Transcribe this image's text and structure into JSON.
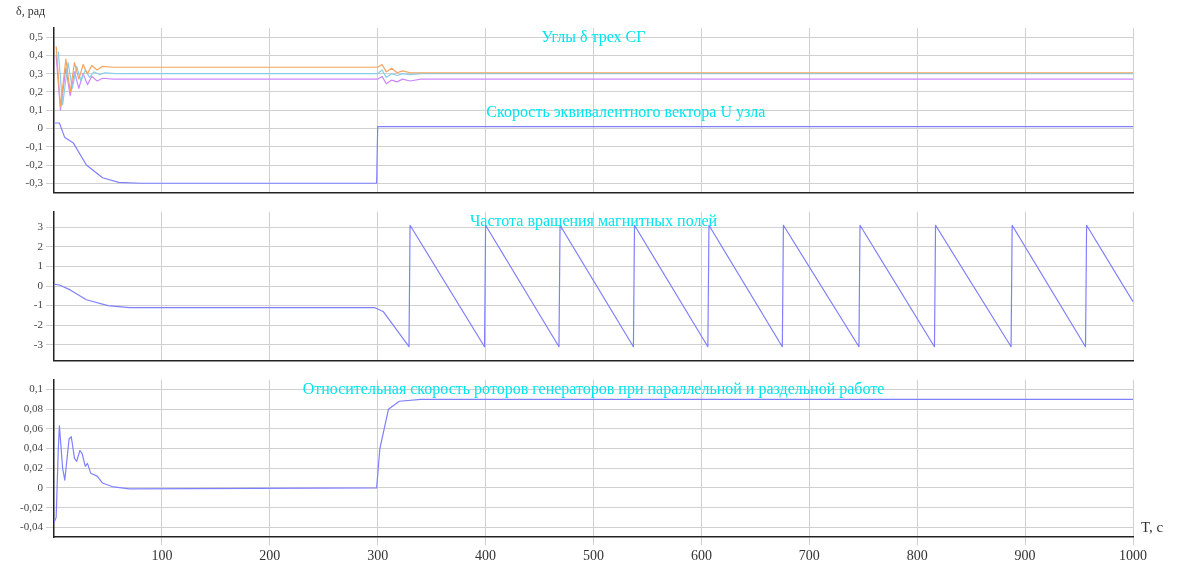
{
  "chart_data": [
    {
      "type": "line",
      "title": "Углы δ трех СГ",
      "ylabel": "δ, рад",
      "annotations": [
        {
          "text": "Скорость эквивалентного вектора U узла",
          "x": 530,
          "y": 0.04
        }
      ],
      "xlim": [
        0,
        1000
      ],
      "xticks": [
        100,
        200,
        300,
        400,
        500,
        600,
        700,
        800,
        900,
        1000
      ],
      "ylim": [
        -0.35,
        0.55
      ],
      "yticks": [
        {
          "value": -0.3,
          "label": "-0,3"
        },
        {
          "value": -0.2,
          "label": "-0,2"
        },
        {
          "value": -0.1,
          "label": "-0,1"
        },
        {
          "value": 0,
          "label": "0"
        },
        {
          "value": 0.1,
          "label": "0,1"
        },
        {
          "value": 0.2,
          "label": "0,2"
        },
        {
          "value": 0.3,
          "label": "0,3"
        },
        {
          "value": 0.4,
          "label": "0,4"
        },
        {
          "value": 0.5,
          "label": "0,5"
        }
      ],
      "tick_labels": "y",
      "grid": true,
      "legend": false,
      "marker": "none",
      "line_style": "solid",
      "series": [
        {
          "color": "#f4a460",
          "x": [
            2,
            6,
            11,
            15,
            19,
            23,
            27,
            31,
            35,
            40,
            45,
            55,
            300,
            304,
            308,
            313,
            318,
            323,
            330,
            340,
            1000
          ],
          "values": [
            0.45,
            0.12,
            0.38,
            0.2,
            0.36,
            0.27,
            0.35,
            0.3,
            0.345,
            0.32,
            0.34,
            0.335,
            0.335,
            0.35,
            0.31,
            0.33,
            0.305,
            0.315,
            0.305,
            0.305,
            0.305
          ]
        },
        {
          "color": "#87ceeb",
          "x": [
            4,
            8,
            13,
            17,
            21,
            25,
            29,
            33,
            37,
            42,
            47,
            57,
            300,
            304,
            308,
            313,
            318,
            323,
            330,
            340,
            1000
          ],
          "values": [
            0.42,
            0.13,
            0.36,
            0.22,
            0.34,
            0.26,
            0.32,
            0.28,
            0.31,
            0.295,
            0.305,
            0.3,
            0.3,
            0.32,
            0.28,
            0.3,
            0.29,
            0.3,
            0.295,
            0.3,
            0.3
          ]
        },
        {
          "color": "#cc88ff",
          "x": [
            2,
            6,
            11,
            15,
            19,
            23,
            27,
            31,
            35,
            40,
            45,
            55,
            300,
            304,
            308,
            313,
            318,
            323,
            330,
            340,
            1000
          ],
          "values": [
            0.4,
            0.1,
            0.33,
            0.18,
            0.31,
            0.22,
            0.3,
            0.24,
            0.285,
            0.26,
            0.275,
            0.27,
            0.27,
            0.285,
            0.245,
            0.265,
            0.255,
            0.27,
            0.26,
            0.27,
            0.27
          ]
        },
        {
          "color": "#8080ff",
          "x": [
            0,
            5,
            10,
            18,
            30,
            45,
            60,
            80,
            299,
            300,
            1000
          ],
          "values": [
            0.03,
            0.03,
            -0.05,
            -0.08,
            -0.2,
            -0.27,
            -0.295,
            -0.3,
            -0.3,
            0.01,
            0.01
          ]
        }
      ]
    },
    {
      "type": "line",
      "title": "Частота вращения магнитных полей",
      "xlim": [
        0,
        1000
      ],
      "xticks": [
        100,
        200,
        300,
        400,
        500,
        600,
        700,
        800,
        900,
        1000
      ],
      "ylim": [
        -3.8,
        3.8
      ],
      "yticks": [
        -3,
        -2,
        -1,
        0,
        1,
        2,
        3
      ],
      "tick_labels": "y",
      "grid": true,
      "legend": false,
      "marker": "none",
      "line_style": "solid",
      "series": [
        {
          "color": "#8080ff",
          "x": [
            0,
            5,
            15,
            30,
            50,
            70,
            100,
            297,
            305,
            329,
            330,
            399,
            400,
            468,
            469,
            537,
            538,
            606,
            607,
            675,
            676,
            746,
            747,
            816,
            817,
            887,
            888,
            956,
            957,
            1000
          ],
          "values": [
            0.1,
            0.05,
            -0.2,
            -0.7,
            -1,
            -1.1,
            -1.1,
            -1.1,
            -1.3,
            -3.1,
            3.1,
            -3.1,
            3.1,
            -3.1,
            3.1,
            -3.1,
            3.1,
            -3.1,
            3.1,
            -3.1,
            3.1,
            -3.1,
            3.1,
            -3.1,
            3.1,
            -3.1,
            3.1,
            -3.1,
            3.1,
            -0.8
          ]
        }
      ]
    },
    {
      "type": "line",
      "title": "Относительная скорость роторов генераторов при параллельной и раздельной работе",
      "xlabel": "T, c",
      "xlim": [
        0,
        1000
      ],
      "xticks": [
        100,
        200,
        300,
        400,
        500,
        600,
        700,
        800,
        900,
        1000
      ],
      "ylim": [
        -0.05,
        0.11
      ],
      "yticks": [
        {
          "value": -0.04,
          "label": "-0,04"
        },
        {
          "value": -0.02,
          "label": "-0,02"
        },
        {
          "value": 0,
          "label": "0"
        },
        {
          "value": 0.02,
          "label": "0,02"
        },
        {
          "value": 0.04,
          "label": "0,04"
        },
        {
          "value": 0.06,
          "label": "0,06"
        },
        {
          "value": 0.08,
          "label": "0,08"
        },
        {
          "value": 0.1,
          "label": "0,1"
        }
      ],
      "grid": true,
      "legend": false,
      "marker": "none",
      "line_style": "solid",
      "series": [
        {
          "color": "#8080ff",
          "x": [
            0,
            2,
            4,
            5,
            8,
            10,
            14,
            16,
            19,
            21,
            24,
            26,
            29,
            31,
            34,
            40,
            45,
            55,
            70,
            299,
            302,
            310,
            320,
            340,
            1000
          ],
          "values": [
            -0.035,
            -0.03,
            0.04,
            0.063,
            0.02,
            0.008,
            0.05,
            0.052,
            0.03,
            0.027,
            0.038,
            0.035,
            0.022,
            0.025,
            0.015,
            0.012,
            0.005,
            0.001,
            -0.001,
            0,
            0.04,
            0.08,
            0.088,
            0.09,
            0.09
          ]
        }
      ]
    }
  ]
}
